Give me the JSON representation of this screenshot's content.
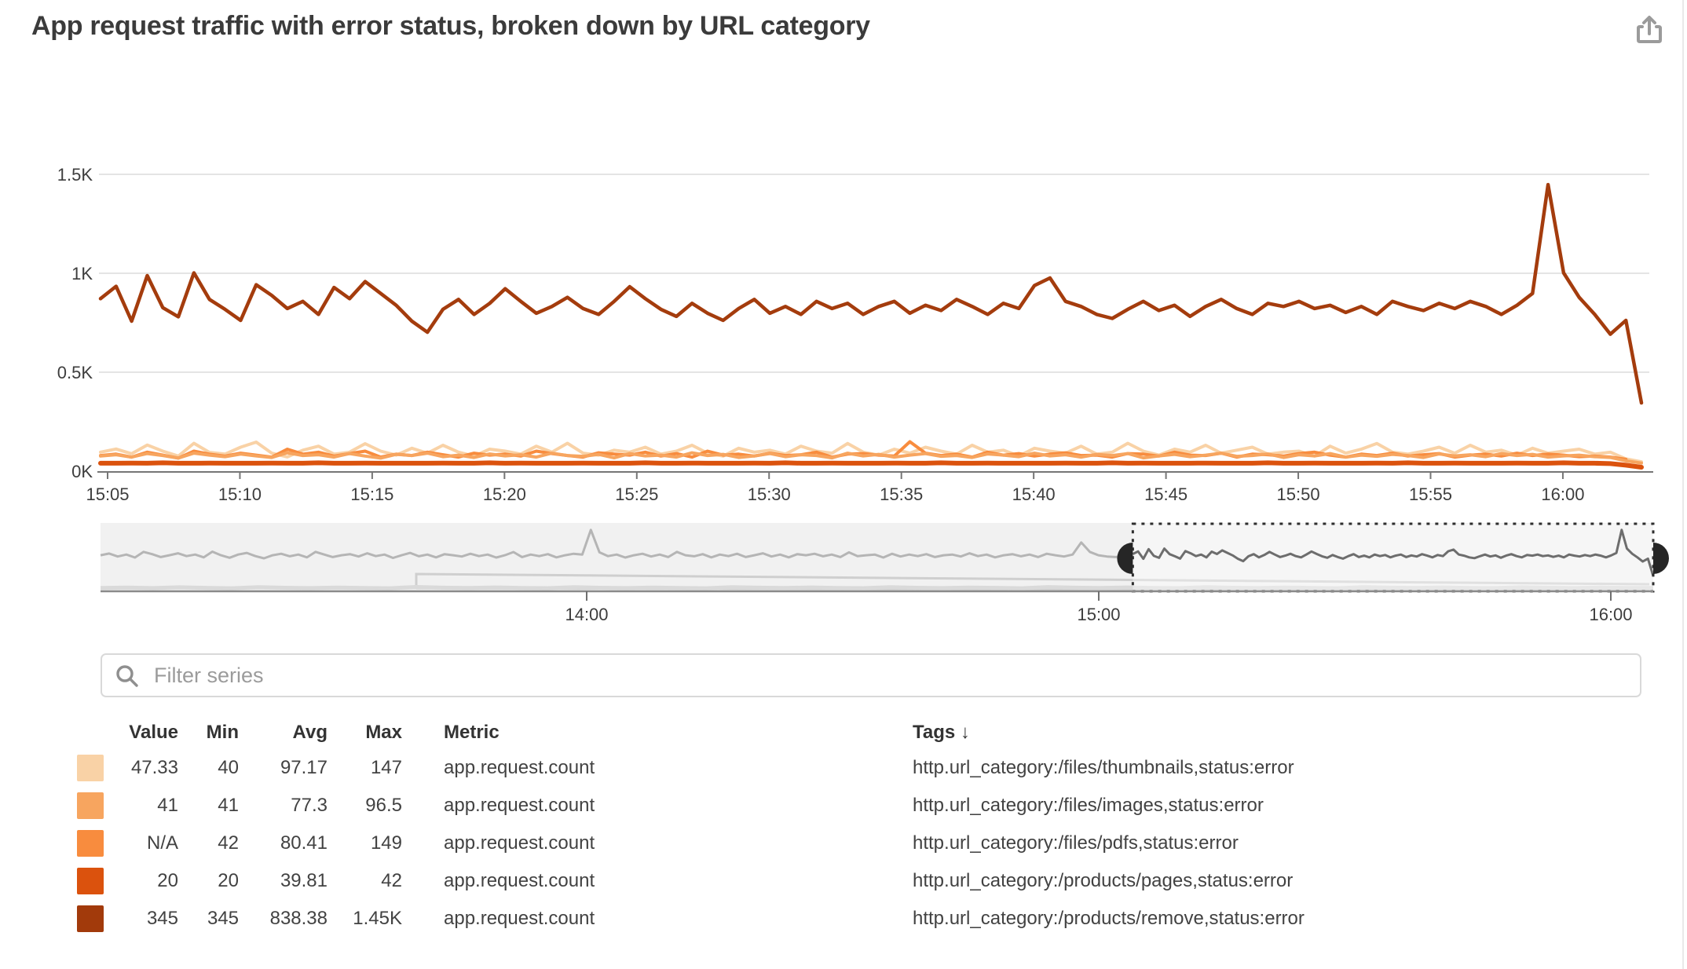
{
  "header": {
    "title": "App request traffic with error status, broken down by URL category"
  },
  "filter": {
    "placeholder": "Filter series"
  },
  "legend": {
    "columns": {
      "value": "Value",
      "min": "Min",
      "avg": "Avg",
      "max": "Max",
      "metric": "Metric",
      "tags": "Tags ↓"
    },
    "rows": [
      {
        "color": "#F9D2A6",
        "value": "47.33",
        "min": "40",
        "avg": "97.17",
        "max": "147",
        "metric": "app.request.count",
        "tags": "http.url_category:/files/thumbnails,status:error"
      },
      {
        "color": "#F7A55F",
        "value": "41",
        "min": "41",
        "avg": "77.3",
        "max": "96.5",
        "metric": "app.request.count",
        "tags": "http.url_category:/files/images,status:error"
      },
      {
        "color": "#F88C3E",
        "value": "N/A",
        "min": "42",
        "avg": "80.41",
        "max": "149",
        "metric": "app.request.count",
        "tags": "http.url_category:/files/pdfs,status:error"
      },
      {
        "color": "#DB520D",
        "value": "20",
        "min": "20",
        "avg": "39.81",
        "max": "42",
        "metric": "app.request.count",
        "tags": "http.url_category:/products/pages,status:error"
      },
      {
        "color": "#A23A0B",
        "value": "345",
        "min": "345",
        "avg": "838.38",
        "max": "1.45K",
        "metric": "app.request.count",
        "tags": "http.url_category:/products/remove,status:error"
      }
    ]
  },
  "chart_data": {
    "type": "line",
    "title": "App request traffic with error status, broken down by URL category",
    "xlabel": "",
    "ylabel": "",
    "ylim": [
      0,
      1500
    ],
    "grid": "horizontal",
    "legend_position": "bottom-table",
    "y_ticks": [
      {
        "value": 0,
        "label": "0K"
      },
      {
        "value": 500,
        "label": "0.5K"
      },
      {
        "value": 1000,
        "label": "1K"
      },
      {
        "value": 1500,
        "label": "1.5K"
      }
    ],
    "x_ticks": [
      "15:05",
      "15:10",
      "15:15",
      "15:20",
      "15:25",
      "15:30",
      "15:35",
      "15:40",
      "15:45",
      "15:50",
      "15:55",
      "16:00"
    ],
    "series": [
      {
        "name": "files/thumbnails errors",
        "metric": "app.request.count",
        "tags": "http.url_category:/files/thumbnails,status:error",
        "color": "#F9D2A6",
        "width": 4,
        "values": [
          96,
          112,
          88,
          132,
          101,
          76,
          141,
          95,
          86,
          121,
          147,
          91,
          72,
          106,
          126,
          86,
          96,
          139,
          101,
          81,
          116,
          91,
          131,
          96,
          76,
          111,
          101,
          86,
          126,
          96,
          141,
          91,
          81,
          106,
          96,
          121,
          86,
          101,
          131,
          91,
          76,
          116,
          96,
          106,
          86,
          126,
          101,
          91,
          140,
          96,
          81,
          111,
          91,
          121,
          101,
          86,
          131,
          96,
          106,
          76,
          116,
          101,
          91,
          126,
          86,
          96,
          141,
          101,
          81,
          111,
          96,
          131,
          91,
          106,
          121,
          86,
          96,
          101,
          76,
          126,
          91,
          111,
          140,
          96,
          86,
          101,
          121,
          91,
          131,
          96,
          106,
          81,
          116,
          91,
          101,
          111,
          86,
          96,
          62,
          47.33
        ]
      },
      {
        "name": "files/images errors",
        "metric": "app.request.count",
        "tags": "http.url_category:/files/images,status:error",
        "color": "#F7A55F",
        "width": 4,
        "values": [
          76,
          83,
          71,
          89,
          79,
          66,
          91,
          81,
          73,
          86,
          77,
          69,
          93,
          79,
          83,
          71,
          89,
          76,
          66,
          85,
          79,
          91,
          73,
          81,
          69,
          87,
          77,
          83,
          71,
          91,
          79,
          75,
          85,
          67,
          89,
          77,
          81,
          71,
          93,
          79,
          85,
          69,
          77,
          89,
          73,
          83,
          79,
          67,
          91,
          77,
          85,
          71,
          81,
          89,
          75,
          79,
          69,
          87,
          81,
          73,
          91,
          77,
          83,
          71,
          85,
          79,
          89,
          67,
          77,
          85,
          73,
          81,
          91,
          75,
          79,
          87,
          69,
          83,
          77,
          89,
          71,
          81,
          75,
          85,
          79,
          69,
          87,
          77,
          83,
          73,
          89,
          79,
          85,
          71,
          77,
          81,
          73,
          69,
          52,
          41
        ]
      },
      {
        "name": "files/pdfs errors",
        "metric": "app.request.count",
        "tags": "http.url_category:/files/pdfs,status:error",
        "color": "#F88C3E",
        "width": 4,
        "values": [
          79,
          86,
          71,
          96,
          81,
          66,
          101,
          86,
          76,
          91,
          81,
          71,
          111,
          86,
          96,
          76,
          89,
          101,
          71,
          86,
          79,
          96,
          83,
          71,
          91,
          81,
          86,
          76,
          101,
          89,
          79,
          71,
          93,
          86,
          81,
          96,
          76,
          89,
          71,
          101,
          81,
          86,
          76,
          91,
          79,
          83,
          96,
          71,
          86,
          89,
          81,
          76,
          149,
          91,
          79,
          86,
          71,
          96,
          81,
          89,
          76,
          86,
          93,
          79,
          81,
          71,
          89,
          86,
          76,
          96,
          81,
          79,
          91,
          71,
          86,
          83,
          76,
          89,
          96,
          81,
          71,
          86,
          79,
          91,
          76,
          83,
          89,
          71,
          81,
          86,
          76,
          91,
          79,
          86,
          81,
          73,
          76,
          71,
          60,
          null
        ]
      },
      {
        "name": "products/pages errors",
        "metric": "app.request.count",
        "tags": "http.url_category:/products/pages,status:error",
        "color": "#DB520D",
        "width": 6,
        "values": [
          40,
          40,
          41,
          40,
          42,
          40,
          40,
          41,
          40,
          40,
          40,
          41,
          40,
          40,
          42,
          40,
          40,
          41,
          40,
          40,
          40,
          40,
          41,
          40,
          40,
          42,
          40,
          41,
          40,
          40,
          40,
          41,
          40,
          40,
          40,
          42,
          40,
          40,
          41,
          40,
          40,
          40,
          41,
          40,
          42,
          40,
          40,
          41,
          40,
          40,
          40,
          41,
          40,
          40,
          42,
          40,
          40,
          41,
          40,
          40,
          40,
          40,
          41,
          40,
          40,
          42,
          40,
          41,
          40,
          40,
          40,
          41,
          40,
          40,
          40,
          42,
          40,
          40,
          41,
          40,
          40,
          40,
          41,
          40,
          42,
          40,
          40,
          41,
          40,
          40,
          40,
          41,
          40,
          40,
          42,
          40,
          40,
          38,
          30,
          20
        ]
      },
      {
        "name": "products/remove errors",
        "metric": "app.request.count",
        "tags": "http.url_category:/products/remove,status:error",
        "color": "#A43C0D",
        "width": 4.5,
        "values": [
          872,
          934,
          758,
          988,
          826,
          780,
          1002,
          868,
          818,
          762,
          942,
          888,
          822,
          858,
          792,
          928,
          872,
          958,
          898,
          838,
          758,
          702,
          818,
          868,
          792,
          848,
          922,
          858,
          798,
          832,
          878,
          822,
          792,
          858,
          932,
          872,
          818,
          782,
          848,
          798,
          762,
          822,
          868,
          798,
          832,
          792,
          858,
          822,
          848,
          792,
          832,
          858,
          798,
          838,
          812,
          868,
          832,
          792,
          848,
          822,
          938,
          976,
          858,
          832,
          792,
          772,
          818,
          858,
          812,
          838,
          782,
          832,
          868,
          822,
          792,
          848,
          832,
          858,
          822,
          838,
          802,
          832,
          792,
          858,
          832,
          812,
          848,
          822,
          858,
          832,
          792,
          838,
          898,
          1448,
          1002,
          878,
          792,
          692,
          762,
          345
        ]
      }
    ],
    "minimap": {
      "x_ticks": [
        "14:00",
        "15:00",
        "16:00"
      ],
      "visible_range_minutes": 182,
      "brush_window": {
        "start": "15:04",
        "end": "16:05"
      },
      "remove_prefix": [
        842,
        884,
        812,
        858,
        788,
        922,
        868,
        798,
        842,
        888,
        822,
        858,
        792,
        928,
        842,
        782,
        858,
        898,
        822,
        768,
        842,
        878,
        818,
        858,
        792,
        922,
        858,
        798,
        842,
        868,
        812,
        888,
        822,
        858,
        778,
        842,
        898,
        818,
        858,
        792,
        868,
        842,
        812,
        878,
        822,
        858,
        788,
        842,
        918,
        798,
        858,
        822,
        868,
        792,
        842,
        878,
        858,
        1448,
        912,
        822,
        858,
        788,
        842,
        878,
        812,
        858,
        798,
        922,
        842,
        818,
        868,
        792,
        858,
        822,
        878,
        798,
        842,
        888,
        812,
        858,
        792,
        868,
        842,
        878,
        818,
        858,
        798,
        912,
        822,
        842,
        858,
        788,
        878,
        812,
        858,
        822,
        868,
        798,
        842,
        858,
        812,
        888,
        822,
        858,
        792,
        842,
        868,
        818,
        858,
        798,
        878,
        842,
        812,
        858,
        1148,
        922,
        842,
        812,
        798,
        822,
        842
      ],
      "small_band": [
        62,
        70,
        58,
        76,
        64,
        55,
        80,
        66,
        58,
        72,
        62,
        55,
        84,
        68,
        60,
        74,
        62,
        56,
        78,
        66,
        58,
        72,
        62,
        55,
        80,
        68,
        60,
        74,
        62,
        56,
        78,
        66,
        58,
        72,
        64,
        55,
        82,
        68,
        60,
        74,
        62,
        56,
        78,
        66,
        58,
        72,
        62,
        55,
        80,
        68,
        60,
        74,
        62,
        58,
        76,
        66,
        58,
        70,
        62,
        60
      ]
    }
  }
}
